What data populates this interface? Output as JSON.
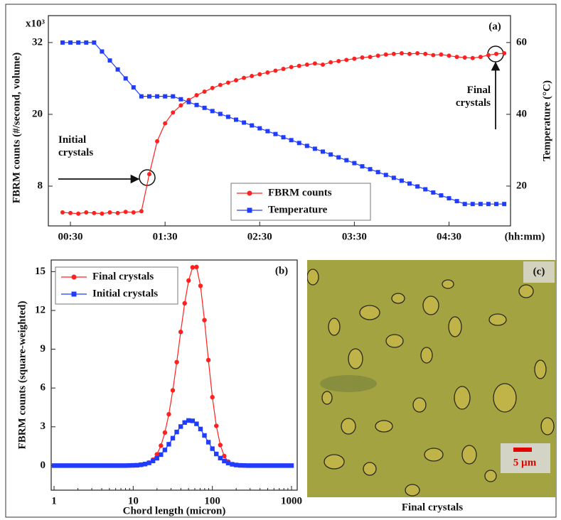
{
  "chart_data": [
    {
      "type": "line",
      "panel_label": "(a)",
      "xlabel": "(hh:mm)",
      "ylabel": "FBRM counts (#/second, volume)",
      "y2label": "Temperature (°C)",
      "y_multiplier": "x10³",
      "annotations": [
        "Initial crystals",
        "Final crystals"
      ],
      "x": [
        25,
        30,
        35,
        40,
        45,
        50,
        55,
        60,
        65,
        70,
        75,
        80,
        85,
        90,
        95,
        100,
        105,
        110,
        115,
        120,
        125,
        130,
        135,
        140,
        145,
        150,
        155,
        160,
        165,
        170,
        175,
        180,
        185,
        190,
        195,
        200,
        205,
        210,
        215,
        220,
        225,
        230,
        235,
        240,
        245,
        250,
        255,
        260,
        265,
        270,
        275,
        280,
        285,
        290,
        295,
        300,
        305
      ],
      "series": [
        {
          "name": "FBRM counts",
          "color": "#ff2020",
          "marker": "circle",
          "values": [
            3.6,
            3.5,
            3.4,
            3.6,
            3.5,
            3.4,
            3.6,
            3.5,
            3.7,
            3.6,
            3.8,
            10,
            15.5,
            18.5,
            20.3,
            21.5,
            22.4,
            23.2,
            23.8,
            24.4,
            24.9,
            25.3,
            25.7,
            26.1,
            26.4,
            26.7,
            27.0,
            27.3,
            27.6,
            27.9,
            28.1,
            28.3,
            28.5,
            28.3,
            28.7,
            28.9,
            29.1,
            29.3,
            29.5,
            29.6,
            29.8,
            30.0,
            30.1,
            30.2,
            30.1,
            30.2,
            30.1,
            29.9,
            30.0,
            29.8,
            29.6,
            29.5,
            29.4,
            29.6,
            29.9,
            30.1,
            30.2
          ]
        },
        {
          "name": "Temperature",
          "color": "#1f3cff",
          "marker": "square",
          "axis": "y2",
          "values": [
            60,
            60,
            60,
            60,
            60,
            57.5,
            55,
            52.5,
            50,
            47.5,
            45,
            45,
            45,
            45,
            45,
            44.2,
            43.4,
            42.6,
            41.8,
            40.9,
            40.1,
            39.3,
            38.5,
            37.7,
            36.9,
            36.1,
            35.3,
            34.5,
            33.6,
            32.8,
            32.0,
            31.2,
            30.4,
            29.6,
            28.8,
            28.0,
            27.2,
            26.4,
            25.5,
            24.7,
            23.9,
            23.1,
            22.3,
            21.5,
            20.7,
            19.9,
            19.1,
            18.2,
            17.4,
            16.6,
            15.8,
            15,
            15,
            15,
            15,
            15,
            15
          ]
        }
      ],
      "xlim": [
        16,
        309
      ],
      "xticks": [
        {
          "value": 30,
          "label": "00:30"
        },
        {
          "value": 90,
          "label": "01:30"
        },
        {
          "value": 150,
          "label": "02:30"
        },
        {
          "value": 210,
          "label": "03:30"
        },
        {
          "value": 270,
          "label": "04:30"
        }
      ],
      "ylim": [
        1.35,
        36.5
      ],
      "yticks": [
        8,
        20,
        32
      ],
      "y2lim": [
        8.9,
        67.5
      ],
      "y2ticks": [
        20,
        40,
        60
      ],
      "legend": "lower center"
    },
    {
      "type": "line",
      "panel_label": "(b)",
      "xlabel": "Chord length (micron)",
      "ylabel": "FBRM counts (square-weighted)",
      "x": [
        1,
        1.122,
        1.259,
        1.413,
        1.585,
        1.778,
        1.995,
        2.239,
        2.512,
        2.818,
        3.162,
        3.548,
        3.981,
        4.467,
        5.012,
        5.623,
        6.31,
        7.079,
        7.943,
        8.913,
        10,
        11.22,
        12.59,
        14.13,
        15.85,
        17.78,
        19.95,
        22.39,
        25.12,
        28.18,
        31.62,
        35.48,
        39.81,
        44.67,
        50.12,
        56.23,
        63.1,
        70.79,
        79.43,
        89.13,
        100,
        112.2,
        125.9,
        141.3,
        158.5,
        177.8,
        199.5,
        223.9,
        251.2,
        281.8,
        316.2,
        354.8,
        398.1,
        446.7,
        501.2,
        562.3,
        631,
        707.9,
        794.3,
        891.3,
        1000
      ],
      "series": [
        {
          "name": "Final crystals",
          "color": "#ff2020",
          "marker": "circle",
          "values": [
            0,
            0,
            0,
            0,
            0,
            0,
            0,
            0,
            0,
            0,
            0,
            0,
            0,
            0,
            0,
            0,
            0,
            0,
            0,
            0,
            0.01,
            0.02,
            0.05,
            0.11,
            0.23,
            0.46,
            0.87,
            1.54,
            2.55,
            3.97,
            5.82,
            8.0,
            10.34,
            12.55,
            14.31,
            15.33,
            15.36,
            13.9,
            11.25,
            8.16,
            5.29,
            3.07,
            1.59,
            0.74,
            0.31,
            0.11,
            0.04,
            0.01,
            0,
            0,
            0,
            0,
            0,
            0,
            0,
            0,
            0,
            0,
            0,
            0,
            0
          ]
        },
        {
          "name": "Initial crystals",
          "color": "#1f3cff",
          "marker": "square",
          "values": [
            0,
            0,
            0,
            0,
            0,
            0,
            0,
            0,
            0,
            0,
            0,
            0,
            0,
            0,
            0,
            0,
            0,
            0,
            0,
            0.01,
            0.02,
            0.03,
            0.07,
            0.12,
            0.21,
            0.36,
            0.57,
            0.85,
            1.21,
            1.65,
            2.12,
            2.6,
            3.02,
            3.33,
            3.49,
            3.46,
            3.23,
            2.83,
            2.33,
            1.81,
            1.31,
            0.9,
            0.58,
            0.35,
            0.2,
            0.1,
            0.05,
            0.02,
            0.01,
            0,
            0,
            0,
            0,
            0,
            0,
            0,
            0,
            0,
            0,
            0,
            0
          ]
        }
      ],
      "xscale": "log",
      "xlim": [
        0.92,
        1180
      ],
      "xticks": [
        1,
        10,
        100,
        1000
      ],
      "ylim": [
        -1.9,
        15.9
      ],
      "yticks": [
        0,
        3,
        6,
        9,
        12,
        15
      ],
      "legend": "upper left"
    }
  ],
  "image_panel": {
    "label": "(c)",
    "scale_bar": "5 µm",
    "caption": "Final crystals"
  }
}
